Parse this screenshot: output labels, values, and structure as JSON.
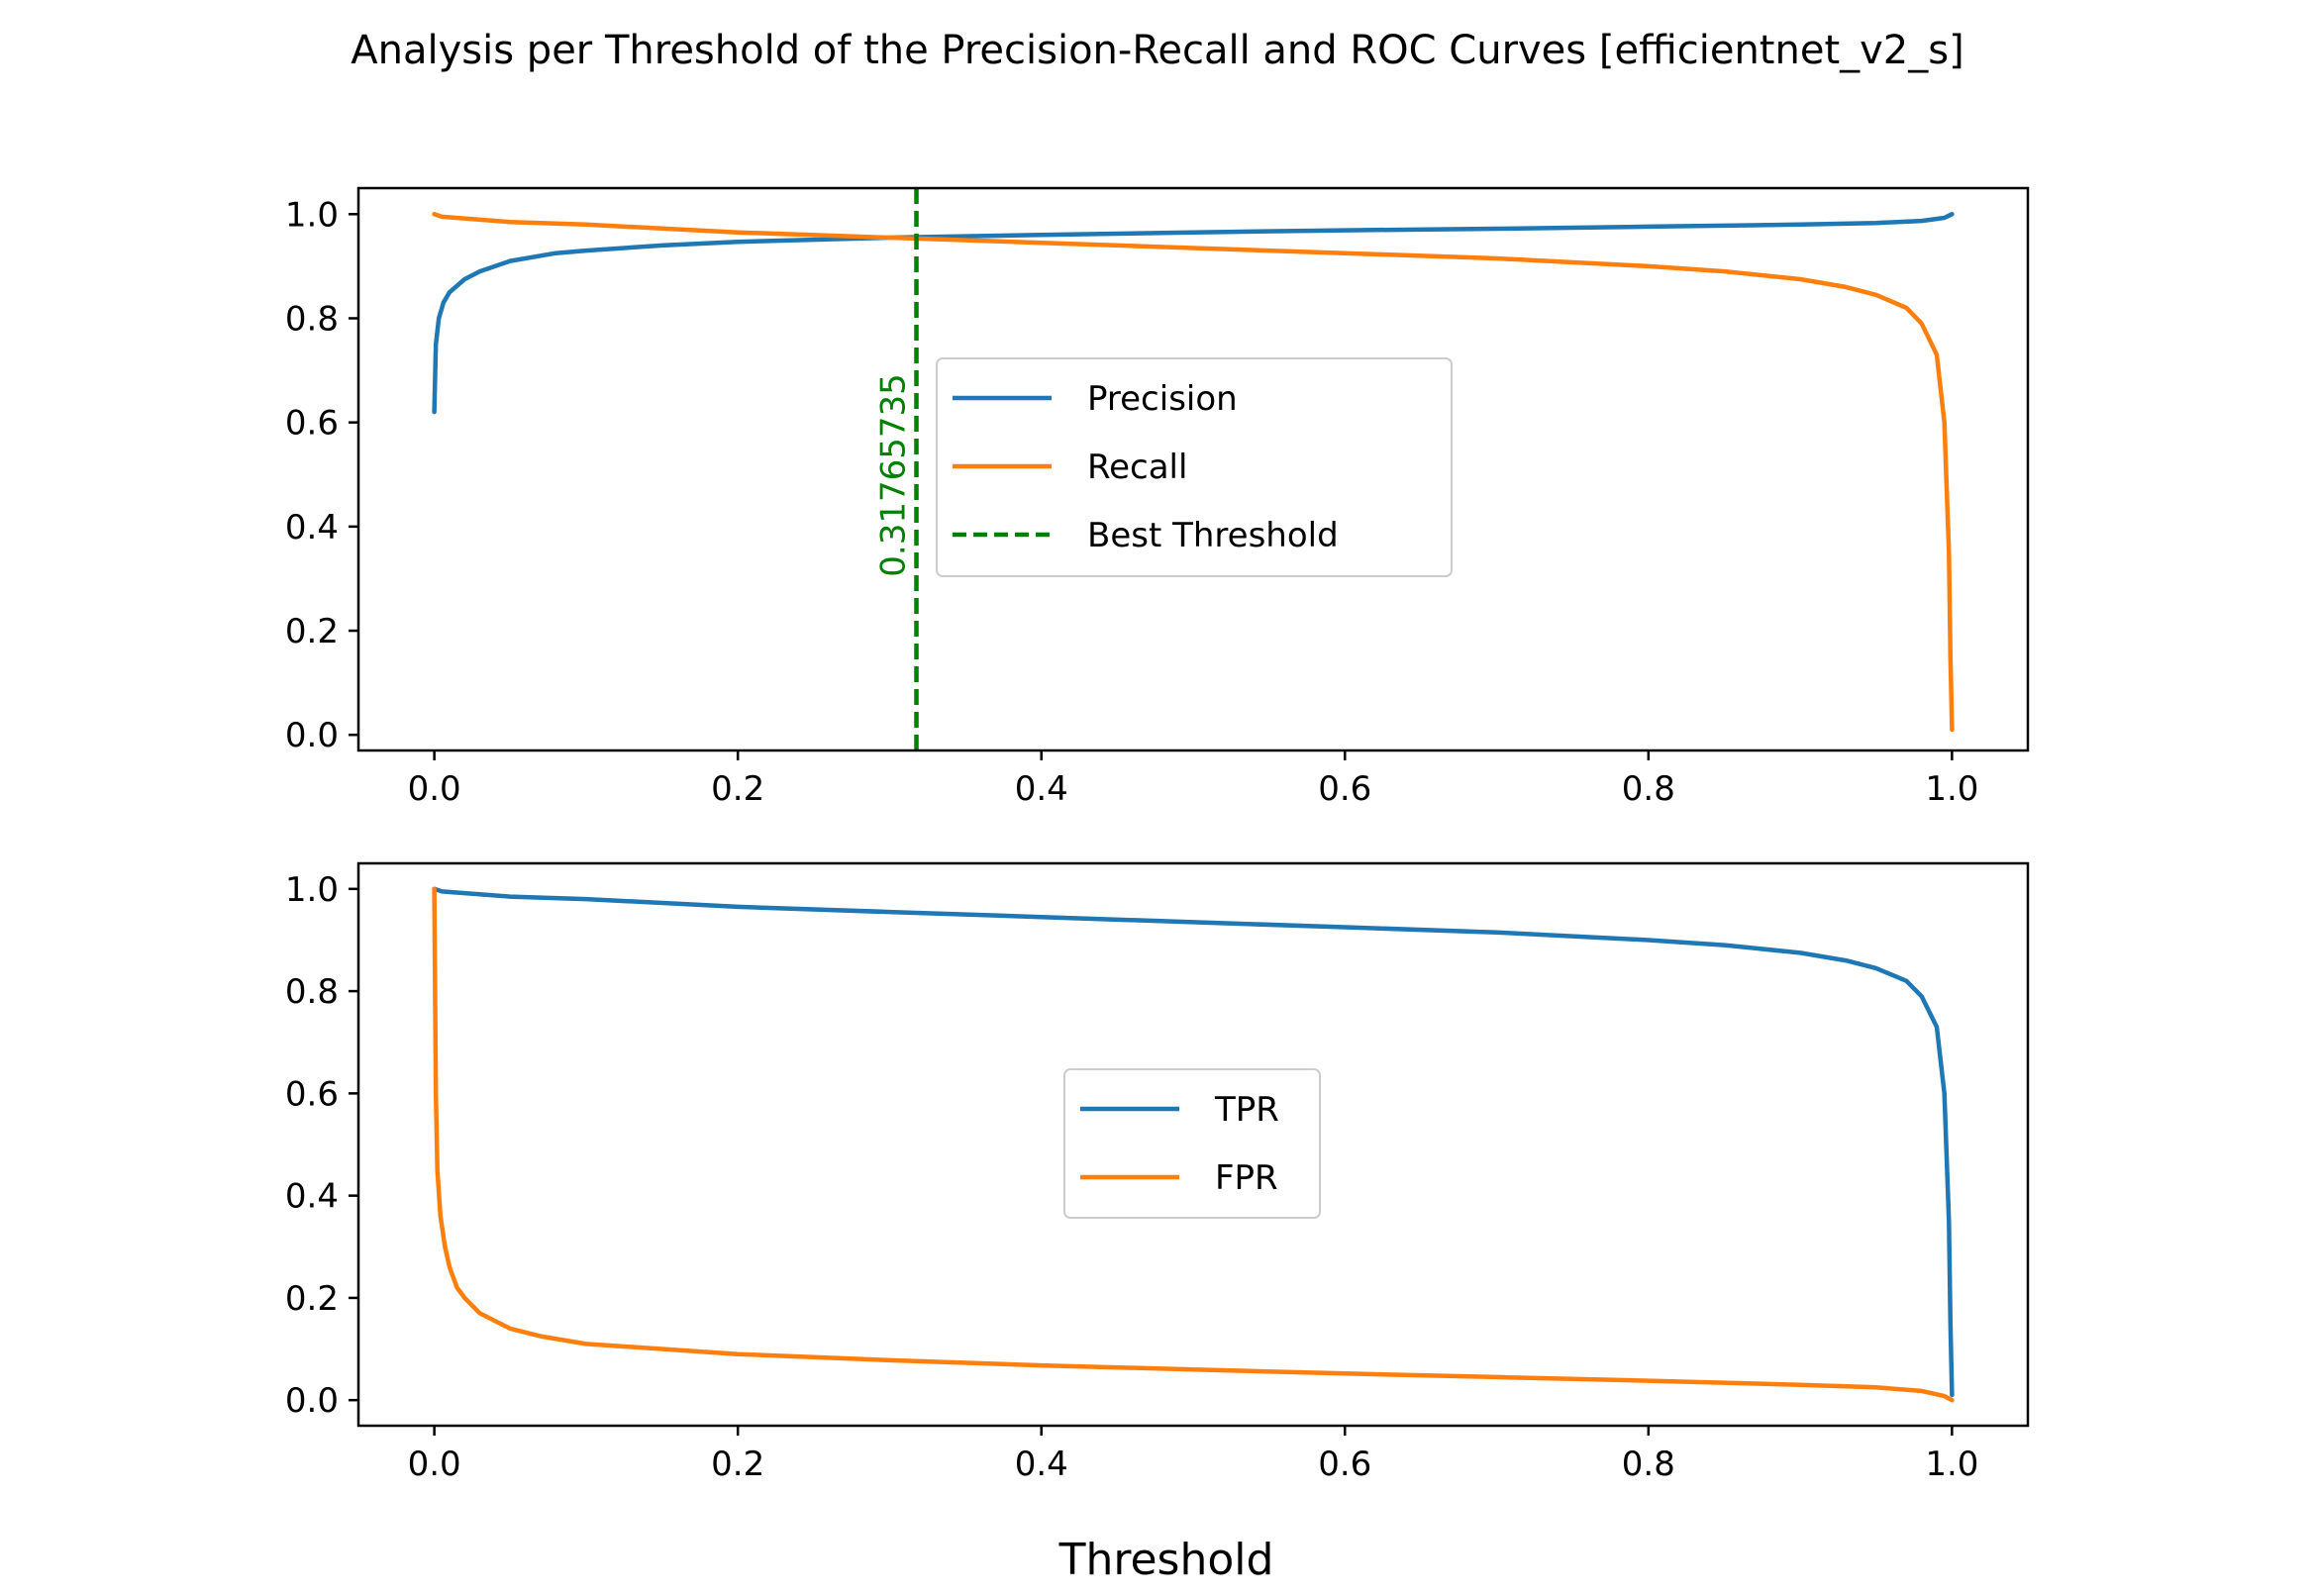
{
  "chart_data": [
    {
      "type": "line",
      "title": "Analysis per Threshold of the Precision-Recall and ROC Curves [efficientnet_v2_s]",
      "xlabel": "",
      "ylabel": "",
      "xlim": [
        -0.05,
        1.05
      ],
      "ylim": [
        -0.03,
        1.05
      ],
      "xticks": [
        "0.0",
        "0.2",
        "0.4",
        "0.6",
        "0.8",
        "1.0"
      ],
      "yticks": [
        "0.0",
        "0.2",
        "0.4",
        "0.6",
        "0.8",
        "1.0"
      ],
      "legend_position": "center",
      "series": [
        {
          "name": "Precision",
          "color": "#1f77b4",
          "x": [
            0.0,
            0.001,
            0.003,
            0.006,
            0.01,
            0.02,
            0.03,
            0.05,
            0.08,
            0.1,
            0.15,
            0.2,
            0.3,
            0.4,
            0.5,
            0.6,
            0.7,
            0.8,
            0.9,
            0.95,
            0.98,
            0.995,
            1.0
          ],
          "y": [
            0.62,
            0.75,
            0.8,
            0.83,
            0.85,
            0.875,
            0.89,
            0.91,
            0.925,
            0.93,
            0.94,
            0.947,
            0.955,
            0.96,
            0.965,
            0.969,
            0.972,
            0.976,
            0.98,
            0.983,
            0.987,
            0.993,
            1.0
          ]
        },
        {
          "name": "Recall",
          "color": "#ff7f0e",
          "x": [
            0.0,
            0.005,
            0.05,
            0.1,
            0.2,
            0.3,
            0.4,
            0.5,
            0.6,
            0.7,
            0.8,
            0.85,
            0.9,
            0.93,
            0.95,
            0.97,
            0.98,
            0.99,
            0.995,
            0.998,
            0.999,
            1.0
          ],
          "y": [
            1.0,
            0.995,
            0.985,
            0.98,
            0.965,
            0.955,
            0.945,
            0.935,
            0.925,
            0.915,
            0.9,
            0.89,
            0.875,
            0.86,
            0.845,
            0.82,
            0.79,
            0.73,
            0.6,
            0.35,
            0.15,
            0.01
          ]
        }
      ],
      "vline": {
        "name": "Best Threshold",
        "x": 0.31765735,
        "label": "0.31765735",
        "color": "#008000",
        "style": "dashed"
      }
    },
    {
      "type": "line",
      "title": "",
      "xlabel": "Threshold",
      "ylabel": "",
      "xlim": [
        -0.05,
        1.05
      ],
      "ylim": [
        -0.05,
        1.05
      ],
      "xticks": [
        "0.0",
        "0.2",
        "0.4",
        "0.6",
        "0.8",
        "1.0"
      ],
      "yticks": [
        "0.0",
        "0.2",
        "0.4",
        "0.6",
        "0.8",
        "1.0"
      ],
      "legend_position": "center",
      "series": [
        {
          "name": "TPR",
          "color": "#1f77b4",
          "x": [
            0.0,
            0.005,
            0.05,
            0.1,
            0.2,
            0.3,
            0.4,
            0.5,
            0.6,
            0.7,
            0.8,
            0.85,
            0.9,
            0.93,
            0.95,
            0.97,
            0.98,
            0.99,
            0.995,
            0.998,
            0.999,
            1.0
          ],
          "y": [
            1.0,
            0.995,
            0.985,
            0.98,
            0.965,
            0.955,
            0.945,
            0.935,
            0.925,
            0.915,
            0.9,
            0.89,
            0.875,
            0.86,
            0.845,
            0.82,
            0.79,
            0.73,
            0.6,
            0.35,
            0.15,
            0.01
          ]
        },
        {
          "name": "FPR",
          "color": "#ff7f0e",
          "x": [
            0.0,
            0.001,
            0.002,
            0.004,
            0.007,
            0.01,
            0.015,
            0.02,
            0.03,
            0.05,
            0.07,
            0.1,
            0.15,
            0.2,
            0.3,
            0.4,
            0.5,
            0.6,
            0.7,
            0.8,
            0.9,
            0.95,
            0.98,
            0.995,
            1.0
          ],
          "y": [
            1.0,
            0.6,
            0.45,
            0.36,
            0.3,
            0.26,
            0.22,
            0.2,
            0.17,
            0.14,
            0.125,
            0.11,
            0.1,
            0.09,
            0.078,
            0.068,
            0.06,
            0.052,
            0.045,
            0.038,
            0.03,
            0.025,
            0.018,
            0.008,
            0.0
          ]
        }
      ]
    }
  ]
}
